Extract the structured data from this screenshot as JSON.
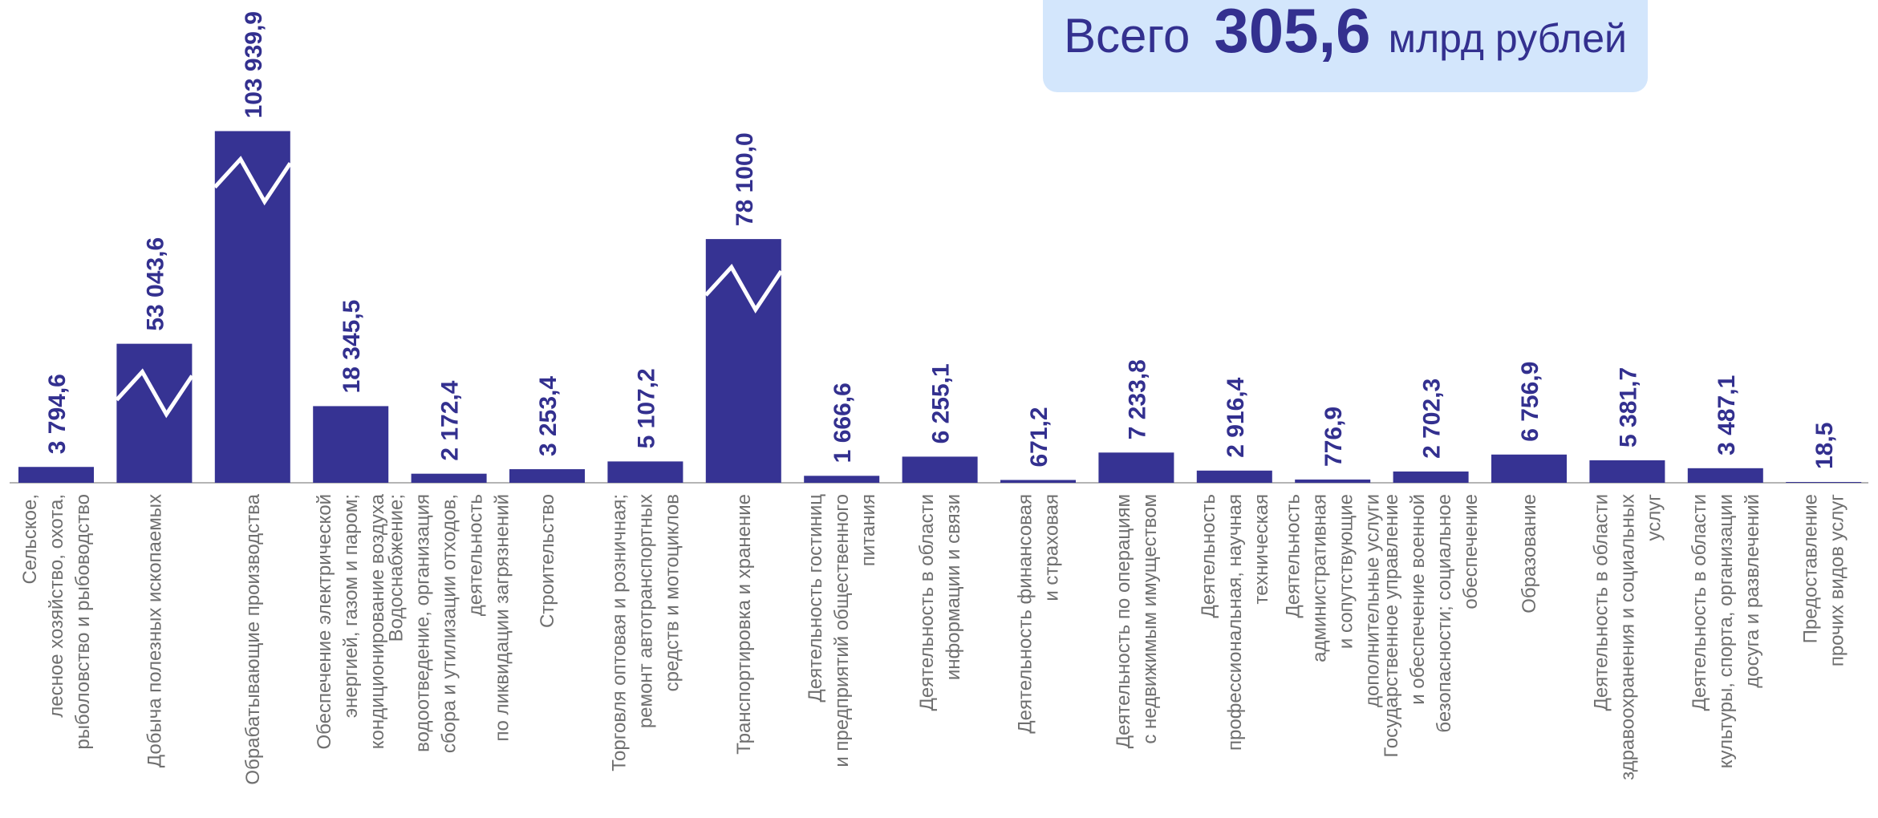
{
  "chart_data": {
    "type": "bar",
    "color": "#363393",
    "axis_break": true,
    "annotation": {
      "label": "Всего",
      "value": "305,6",
      "unit": "млрд рублей"
    },
    "categories": [
      [
        "Сельское,",
        "лесное хозяйство, охота,",
        "рыболовство и  рыбоводство"
      ],
      [
        "Добыча полезных ископаемых"
      ],
      [
        "Обрабатывающие производства"
      ],
      [
        "Обеспечение электрической",
        "энергией, газом и паром;",
        "кондиционирование воздуха"
      ],
      [
        "Водоснабжение;",
        "водоотведение, организация",
        "сбора и утилизации отходов,",
        "деятельность",
        "по ликвидации загрязнений"
      ],
      [
        "Строительство"
      ],
      [
        "Торговля оптовая и розничная;",
        "ремонт автотранспортных",
        "средств и мотоциклов"
      ],
      [
        "Транспортировка и хранение"
      ],
      [
        "Деятельность гостиниц",
        "и предприятий общественного",
        "питания"
      ],
      [
        "Деятельность в области",
        "информации и связи"
      ],
      [
        "Деятельность финансовая",
        "и страховая"
      ],
      [
        "Деятельность по операциям",
        "с недвижимым имуществом"
      ],
      [
        "Деятельность",
        "профессиональная, научная",
        "техническая"
      ],
      [
        "Деятельность",
        "административная",
        "и сопутствующие",
        "дополнительные услуги"
      ],
      [
        "Государственное управление",
        "и обеспечение военной",
        "безопасности; социальное",
        "обеспечение"
      ],
      [
        "Образование"
      ],
      [
        "Деятельность в области",
        "здравоохранения  и социальных",
        "услуг"
      ],
      [
        "Деятельность в области",
        "культуры, спорта, организации",
        "досуга и развлечений"
      ],
      [
        "Предоставление",
        "прочих видов услуг"
      ]
    ],
    "values": [
      3794.6,
      53043.6,
      103939.9,
      18345.5,
      2172.4,
      3253.4,
      5107.2,
      78100.0,
      1666.6,
      6255.1,
      671.2,
      7233.8,
      2916.4,
      776.9,
      2702.3,
      6756.9,
      5381.7,
      3487.1,
      18.5
    ],
    "value_labels": [
      "3 794,6",
      "53 043,6",
      "103 939,9",
      "18 345,5",
      "2 172,4",
      "3 253,4",
      "5 107,2",
      "78 100,0",
      "1 666,6",
      "6 255,1",
      "671,2",
      "7 233,8",
      "2 916,4",
      "776,9",
      "2 702,3",
      "6 756,9",
      "5 381,7",
      "3 487,1",
      "18,5"
    ]
  }
}
